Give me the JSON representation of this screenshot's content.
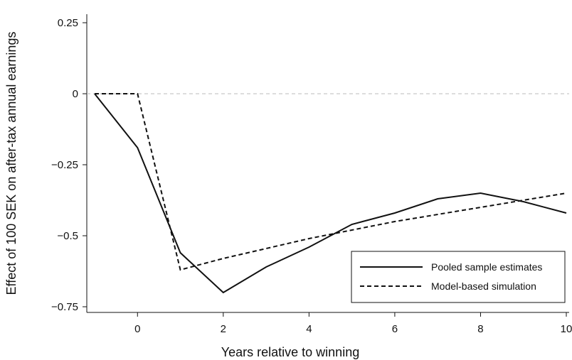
{
  "chart_data": {
    "type": "line",
    "title": "",
    "xlabel": "Years relative to winning",
    "ylabel": "Effect of 100 SEK on after-tax annual earnings",
    "xlim": [
      -1,
      10
    ],
    "ylim": [
      -0.75,
      0.28
    ],
    "x_ticks": [
      0,
      2,
      4,
      6,
      8,
      10
    ],
    "x_tick_labels": [
      "0",
      "2",
      "4",
      "6",
      "8",
      "10"
    ],
    "y_ticks": [
      0.25,
      0,
      -0.25,
      -0.5,
      -0.75
    ],
    "y_tick_labels": [
      "0.25",
      "0",
      "−0.25",
      "−0.5",
      "−0.75"
    ],
    "reference_line": {
      "y": 0,
      "style": "dashed",
      "color": "#bbbbbb"
    },
    "grid": false,
    "legend_position": "bottom-right",
    "series": [
      {
        "name": "Pooled sample estimates",
        "style": "solid",
        "color": "#111111",
        "x": [
          -1,
          0,
          1,
          2,
          3,
          4,
          5,
          6,
          7,
          8,
          9,
          10
        ],
        "values": [
          0,
          -0.19,
          -0.56,
          -0.7,
          -0.61,
          -0.54,
          -0.46,
          -0.42,
          -0.37,
          -0.35,
          -0.38,
          -0.42
        ]
      },
      {
        "name": "Model-based simulation",
        "style": "dashed",
        "color": "#111111",
        "x": [
          -1,
          0,
          1,
          2,
          3,
          4,
          5,
          6,
          7,
          8,
          9,
          10
        ],
        "values": [
          0,
          0,
          -0.62,
          -0.58,
          -0.545,
          -0.51,
          -0.48,
          -0.45,
          -0.425,
          -0.4,
          -0.375,
          -0.35
        ]
      }
    ]
  }
}
